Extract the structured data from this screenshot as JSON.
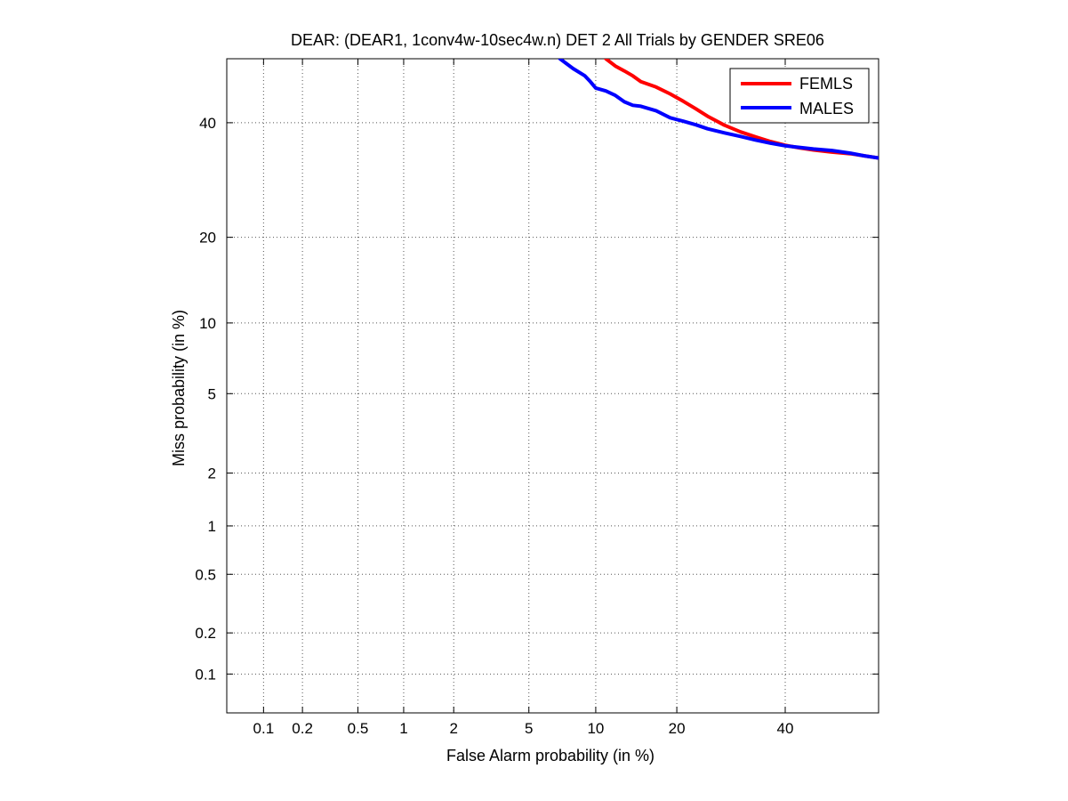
{
  "chart_data": {
    "type": "line",
    "title": "DEAR: (DEAR1, 1conv4w-10sec4w.n) DET 2 All Trials by GENDER SRE06",
    "xlabel": "False Alarm probability (in %)",
    "ylabel": "Miss probability (in %)",
    "scale": "normal-deviate (probit)",
    "xlim": [
      0.05,
      60
    ],
    "ylim": [
      0.05,
      53
    ],
    "x_ticks": [
      0.1,
      0.2,
      0.5,
      1,
      2,
      5,
      10,
      20,
      40
    ],
    "x_tick_labels": [
      "0.1",
      "0.2",
      "0.5",
      "1",
      "2",
      "5",
      "10",
      "20",
      "40"
    ],
    "y_ticks": [
      0.1,
      0.2,
      0.5,
      1,
      2,
      5,
      10,
      20,
      40
    ],
    "y_tick_labels": [
      "0.1",
      "0.2",
      "0.5",
      "1",
      "2",
      "5",
      "10",
      "20",
      "40"
    ],
    "grid": true,
    "legend_position": "top-right",
    "series": [
      {
        "name": "FEMLS",
        "color": "#ff0000",
        "x": [
          11,
          12,
          13,
          14,
          15,
          17,
          19,
          21,
          23,
          25,
          28,
          31,
          34,
          37,
          40,
          43,
          46,
          50,
          54,
          57,
          60
        ],
        "y": [
          53,
          51.5,
          50.5,
          49.5,
          48.3,
          47.2,
          45.8,
          44.3,
          42.8,
          41.3,
          39.5,
          38.2,
          37.2,
          36.3,
          35.6,
          35.1,
          34.7,
          34.3,
          34.0,
          33.6,
          33.2
        ]
      },
      {
        "name": "MALES",
        "color": "#0000ff",
        "x": [
          7.0,
          8.0,
          9.0,
          9.5,
          10,
          11,
          12,
          13,
          14,
          15,
          17,
          19,
          21,
          23,
          25,
          28,
          31,
          34,
          37,
          40,
          43,
          46,
          50,
          54,
          57,
          60
        ],
        "y": [
          53,
          51,
          49.5,
          48.3,
          47.0,
          46.4,
          45.5,
          44.2,
          43.5,
          43.3,
          42.4,
          41.0,
          40.3,
          39.6,
          38.8,
          38.0,
          37.3,
          36.6,
          36.0,
          35.5,
          35.2,
          34.9,
          34.6,
          34.1,
          33.6,
          33.2
        ]
      }
    ]
  }
}
